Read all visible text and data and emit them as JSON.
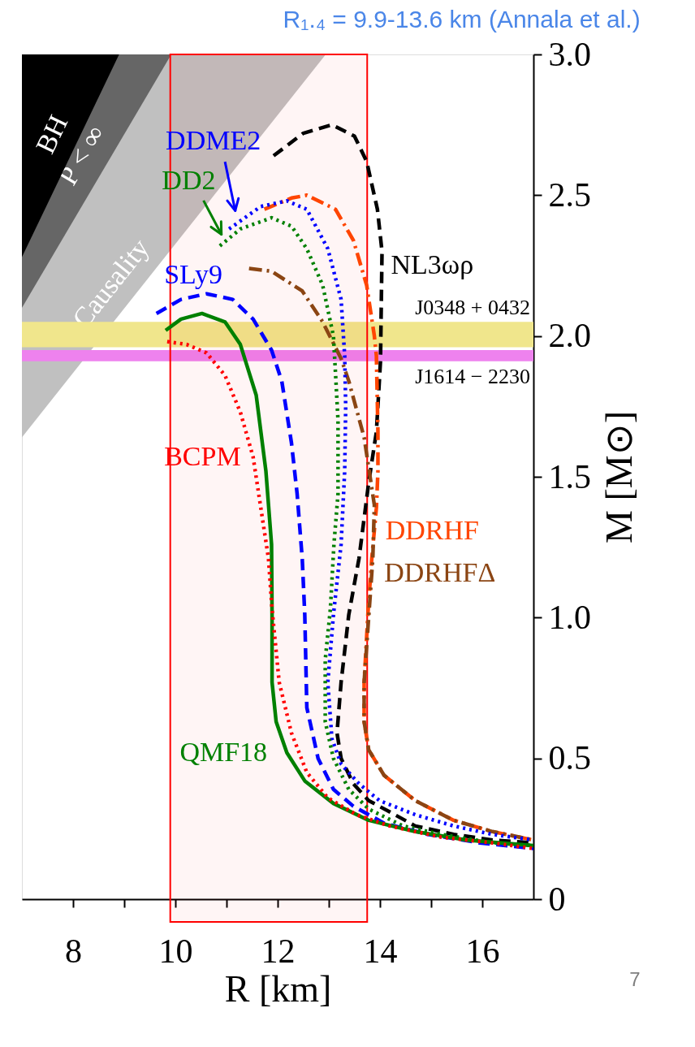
{
  "chart_data": {
    "type": "line",
    "title": "R₁.₄ = 9.9-13.6 km (Annala et al.)",
    "xlabel": "R [km]",
    "ylabel": "M [M⊙]",
    "xlim": [
      7,
      17
    ],
    "ylim": [
      0,
      3.0
    ],
    "xticks": [
      8,
      {
        "value": 9,
        "label": null
      },
      10,
      {
        "value": 11,
        "label": null
      },
      12,
      {
        "value": 13,
        "label": null
      },
      14,
      {
        "value": 15,
        "label": null
      },
      16
    ],
    "yticks": [
      0,
      0.5,
      {
        "value": 1,
        "label": "1.0"
      },
      1.5,
      {
        "value": 2,
        "label": "2.0"
      },
      2.5,
      {
        "value": 3,
        "label": "3.0"
      }
    ],
    "grid": false,
    "bands": [
      {
        "axis": "y",
        "from": 1.96,
        "to": 2.05,
        "label": "J0348 + 0432",
        "color": "#f0e68c"
      },
      {
        "axis": "y",
        "from": 1.91,
        "to": 1.95,
        "label": "J1614 − 2230",
        "color": "#ee82ee"
      },
      {
        "axis": "x",
        "from": 9.9,
        "to": 13.75,
        "color": "#ff0000"
      }
    ],
    "series": [
      {
        "type": "area",
        "name": "Causality",
        "color": "#c0c0c0",
        "x": [
          7,
          12.94
        ],
        "values": [
          1.64,
          3.0
        ]
      },
      {
        "type": "area",
        "name": "P < ∞",
        "color": "#666666",
        "x": [
          7,
          9.92
        ],
        "values": [
          2.1,
          3.0
        ]
      },
      {
        "type": "area",
        "name": "BH",
        "color": "#000000",
        "x": [
          7,
          8.9
        ],
        "values": [
          2.28,
          3.0
        ]
      },
      {
        "type": "line",
        "name": "NL3ωρ",
        "color": "#000000",
        "line_style": "dashed",
        "x": [
          11.92,
          12.5,
          13.06,
          13.5,
          13.74,
          13.95,
          14.04,
          14.01,
          13.93,
          13.78,
          13.59,
          13.39,
          13.24,
          13.16,
          13.24,
          13.48,
          13.78,
          14.19,
          14.69,
          15.44,
          16.2,
          17.0
        ],
        "values": [
          2.64,
          2.72,
          2.75,
          2.71,
          2.62,
          2.45,
          2.3,
          1.91,
          1.66,
          1.48,
          1.21,
          1.01,
          0.77,
          0.59,
          0.5,
          0.41,
          0.35,
          0.31,
          0.26,
          0.23,
          0.21,
          0.2
        ]
      },
      {
        "type": "line",
        "name": "DDRHF",
        "color": "#ff4500",
        "line_style": "dashdot",
        "x": [
          11.74,
          12.27,
          12.57,
          13.13,
          13.48,
          13.74,
          13.89,
          13.93,
          13.96,
          13.96,
          13.93,
          13.84,
          13.77,
          13.69,
          13.69,
          13.78,
          14.08,
          14.69,
          15.44,
          16.2,
          17.0
        ],
        "values": [
          2.45,
          2.49,
          2.5,
          2.45,
          2.34,
          2.18,
          2.0,
          1.93,
          1.66,
          1.52,
          1.39,
          1.21,
          1.03,
          0.77,
          0.63,
          0.53,
          0.44,
          0.35,
          0.28,
          0.24,
          0.21
        ]
      },
      {
        "type": "line",
        "name": "DDRHFΔ",
        "color": "#8b4513",
        "line_style": "dashdot",
        "x": [
          11.44,
          11.88,
          12.48,
          12.88,
          13.24,
          13.39,
          13.69,
          13.89,
          13.86,
          13.81,
          13.69,
          13.69,
          13.78,
          14.08,
          14.69,
          15.44,
          16.2,
          17.0
        ],
        "values": [
          2.24,
          2.23,
          2.16,
          2.05,
          1.92,
          1.84,
          1.64,
          1.4,
          1.21,
          1.08,
          0.77,
          0.63,
          0.53,
          0.44,
          0.35,
          0.28,
          0.24,
          0.21
        ]
      },
      {
        "type": "line",
        "name": "DDME2",
        "color": "#0000ff",
        "line_style": "dotted",
        "x": [
          11.05,
          11.67,
          12.18,
          12.57,
          12.98,
          13.24,
          13.31,
          13.33,
          13.31,
          13.24,
          13.09,
          12.98,
          13.06,
          13.24,
          13.59,
          13.99,
          14.69,
          15.44,
          16.2,
          17.0
        ],
        "values": [
          2.38,
          2.46,
          2.48,
          2.45,
          2.31,
          2.13,
          1.93,
          1.75,
          1.52,
          1.26,
          1.01,
          0.77,
          0.57,
          0.48,
          0.41,
          0.35,
          0.3,
          0.26,
          0.23,
          0.21
        ]
      },
      {
        "type": "line",
        "name": "DD2",
        "color": "#008000",
        "line_style": "dotted",
        "x": [
          10.87,
          11.27,
          11.88,
          12.27,
          12.57,
          12.88,
          13.09,
          13.13,
          13.18,
          13.18,
          13.1,
          13.03,
          12.93,
          12.93,
          13.09,
          13.39,
          13.78,
          14.45,
          15.2,
          16.2,
          17.0
        ],
        "values": [
          2.32,
          2.38,
          2.42,
          2.39,
          2.31,
          2.18,
          2.0,
          1.87,
          1.7,
          1.44,
          1.26,
          1.03,
          0.85,
          0.63,
          0.5,
          0.39,
          0.32,
          0.26,
          0.23,
          0.2,
          0.19
        ]
      },
      {
        "type": "line",
        "name": "SLy9",
        "color": "#0000ff",
        "line_style": "dashed",
        "x": [
          9.63,
          10.11,
          10.61,
          11.12,
          11.52,
          11.88,
          12.08,
          12.27,
          12.38,
          12.48,
          12.53,
          12.57,
          12.79,
          13.09,
          13.48,
          14.08,
          14.94,
          15.95,
          17.0
        ],
        "values": [
          2.08,
          2.13,
          2.15,
          2.13,
          2.06,
          1.95,
          1.84,
          1.62,
          1.44,
          1.21,
          1.01,
          0.68,
          0.5,
          0.39,
          0.33,
          0.27,
          0.23,
          0.2,
          0.18
        ]
      },
      {
        "type": "line",
        "name": "QMF18",
        "color": "#008000",
        "line_style": "solid",
        "x": [
          9.81,
          10.11,
          10.52,
          10.97,
          11.27,
          11.58,
          11.77,
          11.88,
          11.89,
          11.89,
          11.97,
          12.18,
          12.53,
          13.09,
          13.78,
          14.69,
          15.7,
          17.0
        ],
        "values": [
          2.02,
          2.06,
          2.08,
          2.05,
          1.97,
          1.79,
          1.52,
          1.26,
          1.01,
          0.77,
          0.63,
          0.52,
          0.42,
          0.34,
          0.28,
          0.24,
          0.21,
          0.19
        ]
      },
      {
        "type": "line",
        "name": "BCPM",
        "color": "#ff0000",
        "line_style": "dotted",
        "x": [
          9.84,
          10.22,
          10.61,
          10.97,
          11.27,
          11.52,
          11.67,
          11.82,
          11.89,
          12.03,
          12.27,
          12.57,
          12.98,
          13.54,
          14.19,
          15.2,
          16.2,
          17.0
        ],
        "values": [
          1.98,
          1.97,
          1.94,
          1.86,
          1.73,
          1.57,
          1.39,
          1.21,
          1.03,
          0.77,
          0.59,
          0.45,
          0.36,
          0.3,
          0.26,
          0.22,
          0.2,
          0.18
        ]
      }
    ],
    "annotations": [
      "7"
    ]
  }
}
